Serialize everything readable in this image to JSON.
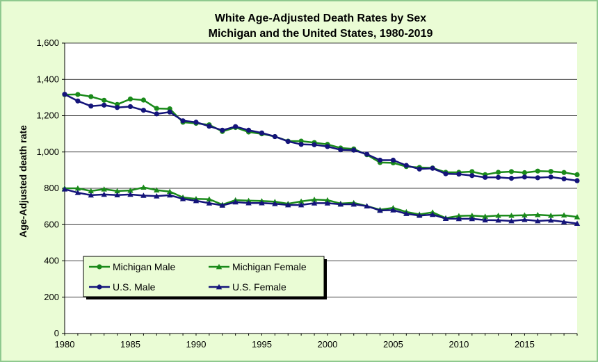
{
  "chart_data": {
    "type": "line",
    "title": [
      "White Age-Adjusted Death Rates by Sex",
      "Michigan and the United States, 1980-2019"
    ],
    "xlabel": "",
    "ylabel": "Age-Adjusted death rate",
    "xlim": [
      1980,
      2019
    ],
    "ylim": [
      0,
      1600
    ],
    "x_ticks": [
      1980,
      1985,
      1990,
      1995,
      2000,
      2005,
      2010,
      2015
    ],
    "y_ticks": [
      0,
      200,
      400,
      600,
      800,
      1000,
      1200,
      1400,
      1600
    ],
    "y_tick_labels": [
      "0",
      "200",
      "400",
      "600",
      "800",
      "1,000",
      "1,200",
      "1,400",
      "1,600"
    ],
    "grid": "horizontal",
    "legend_position": "bottom-left",
    "x": [
      1980,
      1981,
      1982,
      1983,
      1984,
      1985,
      1986,
      1987,
      1988,
      1989,
      1990,
      1991,
      1992,
      1993,
      1994,
      1995,
      1996,
      1997,
      1998,
      1999,
      2000,
      2001,
      2002,
      2003,
      2004,
      2005,
      2006,
      2007,
      2008,
      2009,
      2010,
      2011,
      2012,
      2013,
      2014,
      2015,
      2016,
      2017,
      2018,
      2019
    ],
    "series": [
      {
        "name": "Michigan Male",
        "color": "#1a8a1a",
        "marker": "circle",
        "values": [
          1316,
          1317,
          1305,
          1285,
          1262,
          1292,
          1286,
          1240,
          1238,
          1164,
          1158,
          1150,
          1113,
          1135,
          1110,
          1100,
          1085,
          1060,
          1060,
          1052,
          1042,
          1022,
          1017,
          985,
          942,
          940,
          920,
          915,
          912,
          888,
          888,
          892,
          875,
          888,
          892,
          886,
          895,
          893,
          887,
          875
        ]
      },
      {
        "name": "Michigan Female",
        "color": "#1a8a1a",
        "marker": "triangle",
        "values": [
          800,
          800,
          785,
          795,
          785,
          788,
          805,
          790,
          782,
          750,
          742,
          740,
          710,
          735,
          732,
          730,
          726,
          715,
          728,
          738,
          735,
          716,
          720,
          702,
          682,
          692,
          670,
          656,
          668,
          636,
          648,
          650,
          645,
          650,
          650,
          652,
          654,
          650,
          652,
          642
        ]
      },
      {
        "name": "U.S. Male",
        "color": "#14147a",
        "marker": "circle",
        "values": [
          1318,
          1281,
          1253,
          1258,
          1245,
          1250,
          1230,
          1210,
          1220,
          1172,
          1164,
          1142,
          1120,
          1140,
          1120,
          1105,
          1085,
          1058,
          1042,
          1040,
          1030,
          1012,
          1010,
          988,
          955,
          955,
          926,
          906,
          910,
          880,
          878,
          870,
          860,
          860,
          855,
          862,
          858,
          862,
          852,
          842
        ]
      },
      {
        "name": "U.S. Female",
        "color": "#14147a",
        "marker": "triangle",
        "values": [
          795,
          776,
          762,
          766,
          763,
          766,
          760,
          757,
          762,
          742,
          731,
          718,
          706,
          724,
          719,
          719,
          715,
          708,
          708,
          718,
          718,
          712,
          712,
          702,
          678,
          680,
          660,
          650,
          655,
          633,
          632,
          632,
          625,
          624,
          620,
          627,
          620,
          624,
          615,
          606
        ]
      }
    ]
  }
}
